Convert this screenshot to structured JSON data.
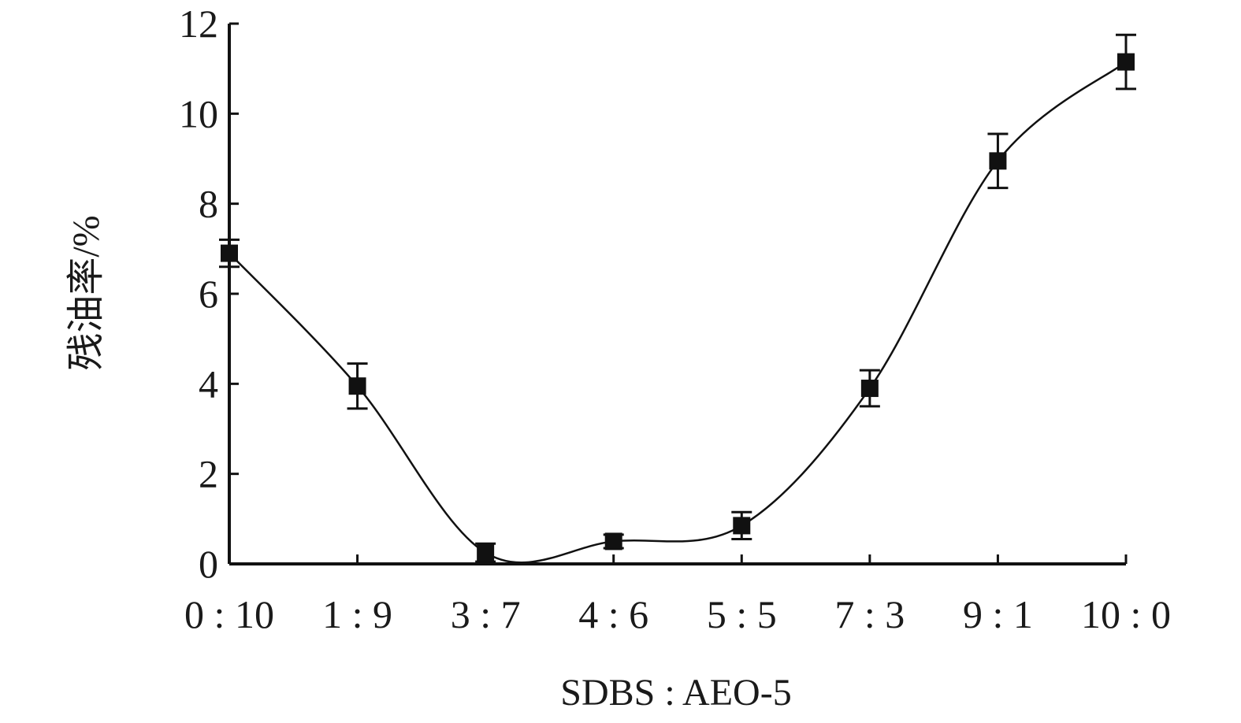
{
  "chart_data": {
    "type": "line",
    "title": "",
    "xlabel": "SDBS : AEO-5",
    "ylabel": "残油率/%",
    "categories": [
      "0 : 10",
      "1 : 9",
      "3 : 7",
      "4 : 6",
      "5 : 5",
      "7 : 3",
      "9 : 1",
      "10 : 0"
    ],
    "y_ticks": [
      "0",
      "2",
      "4",
      "6",
      "8",
      "10",
      "12"
    ],
    "ylim": [
      0,
      12
    ],
    "series": [
      {
        "values": [
          6.9,
          3.95,
          0.25,
          0.5,
          0.85,
          3.9,
          8.95,
          11.15
        ],
        "errors": [
          0.3,
          0.5,
          0.2,
          0.15,
          0.3,
          0.4,
          0.6,
          0.6
        ]
      }
    ],
    "marker": "square",
    "line_style": "smooth",
    "grid": false,
    "legend": "none",
    "colors": {
      "line": "#111111",
      "marker": "#111111",
      "axis": "#111111"
    }
  }
}
